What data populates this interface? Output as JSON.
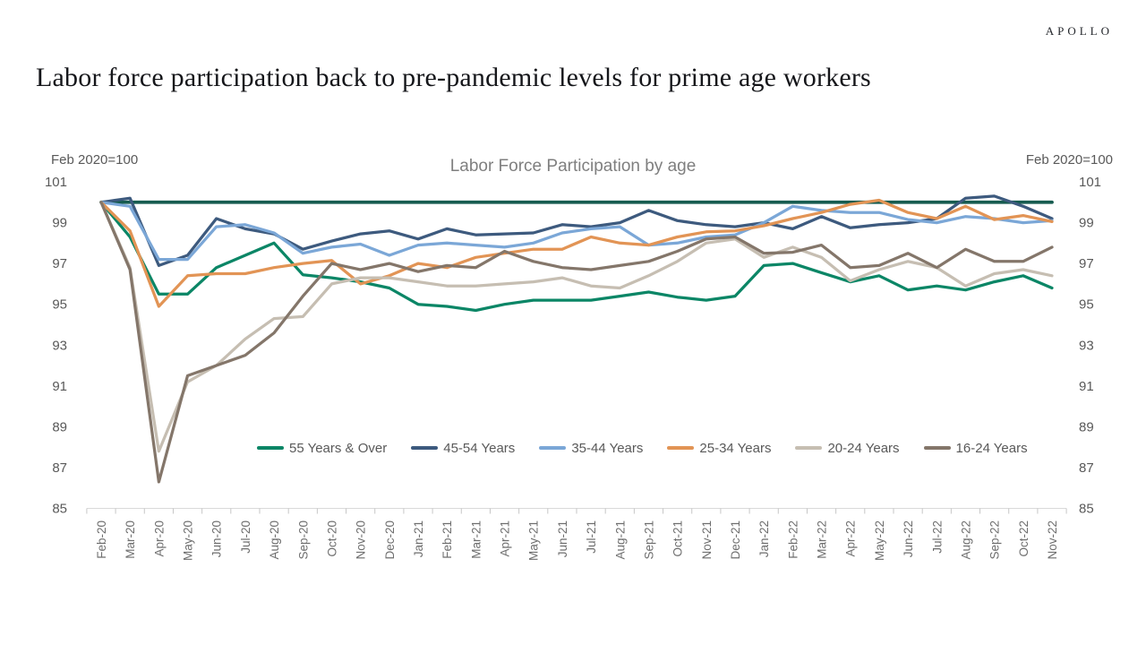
{
  "brand": {
    "logo_text": "APOLLO"
  },
  "header": {
    "title": "Labor force participation back to pre-pandemic levels for prime age workers"
  },
  "chart": {
    "title": "Labor Force Participation by age",
    "left_axis_note": "Feb 2020=100",
    "right_axis_note": "Feb 2020=100"
  },
  "chart_data": {
    "type": "line",
    "title": "Labor Force Participation by age",
    "xlabel": "",
    "ylabel": "Feb 2020=100",
    "ylim": [
      85,
      101
    ],
    "y_ticks": [
      101,
      99,
      97,
      95,
      93,
      91,
      89,
      87,
      85
    ],
    "grid": false,
    "legend_position": "bottom-center-inside",
    "categories": [
      "Feb-20",
      "Mar-20",
      "Apr-20",
      "May-20",
      "Jun-20",
      "Jul-20",
      "Aug-20",
      "Sep-20",
      "Oct-20",
      "Nov-20",
      "Dec-20",
      "Jan-21",
      "Feb-21",
      "Mar-21",
      "Apr-21",
      "May-21",
      "Jun-21",
      "Jul-21",
      "Aug-21",
      "Sep-21",
      "Oct-21",
      "Nov-21",
      "Dec-21",
      "Jan-22",
      "Feb-22",
      "Mar-22",
      "Apr-22",
      "May-22",
      "Jun-22",
      "Jul-22",
      "Aug-22",
      "Sep-22",
      "Oct-22",
      "Nov-22"
    ],
    "reference_line": {
      "name": "Feb 2020 = 100 baseline",
      "value": 100,
      "color": "#175C50"
    },
    "series": [
      {
        "name": "55 Years & Over",
        "color": "#0B8666",
        "values": [
          100,
          98.3,
          95.5,
          95.5,
          96.8,
          97.4,
          98.0,
          96.45,
          96.3,
          96.1,
          95.8,
          95.0,
          94.9,
          94.7,
          95.0,
          95.2,
          95.2,
          95.2,
          95.4,
          95.6,
          95.35,
          95.2,
          95.4,
          96.9,
          97.0,
          96.55,
          96.1,
          96.4,
          95.7,
          95.9,
          95.7,
          96.1,
          96.4,
          95.8
        ]
      },
      {
        "name": "45-54 Years",
        "color": "#3D5A7E",
        "values": [
          100,
          100.2,
          96.9,
          97.4,
          99.2,
          98.7,
          98.45,
          97.7,
          98.1,
          98.45,
          98.6,
          98.2,
          98.7,
          98.4,
          98.45,
          98.5,
          98.9,
          98.8,
          99.0,
          99.6,
          99.1,
          98.9,
          98.8,
          99.0,
          98.7,
          99.3,
          98.75,
          98.9,
          99.0,
          99.2,
          100.2,
          100.3,
          99.8,
          99.2
        ]
      },
      {
        "name": "35-44 Years",
        "color": "#7BA7D7",
        "values": [
          100,
          99.8,
          97.2,
          97.2,
          98.8,
          98.9,
          98.5,
          97.5,
          97.8,
          97.95,
          97.4,
          97.9,
          98.0,
          97.9,
          97.8,
          98.0,
          98.5,
          98.7,
          98.8,
          97.9,
          98.0,
          98.3,
          98.4,
          99.0,
          99.8,
          99.6,
          99.5,
          99.5,
          99.15,
          99.0,
          99.3,
          99.2,
          99.0,
          99.1
        ]
      },
      {
        "name": "25-34 Years",
        "color": "#E29455",
        "values": [
          100,
          98.6,
          94.9,
          96.4,
          96.5,
          96.5,
          96.8,
          97.0,
          97.15,
          96.0,
          96.4,
          97.0,
          96.8,
          97.3,
          97.5,
          97.7,
          97.7,
          98.3,
          98.0,
          97.9,
          98.3,
          98.55,
          98.6,
          98.85,
          99.2,
          99.5,
          99.9,
          100.1,
          99.5,
          99.2,
          99.8,
          99.15,
          99.35,
          99.05
        ]
      },
      {
        "name": "20-24 Years",
        "color": "#C6BEB2",
        "values": [
          100,
          96.8,
          87.8,
          91.2,
          92.0,
          93.3,
          94.3,
          94.4,
          96.0,
          96.3,
          96.3,
          96.1,
          95.9,
          95.9,
          96.0,
          96.1,
          96.3,
          95.9,
          95.8,
          96.4,
          97.1,
          98.0,
          98.2,
          97.3,
          97.8,
          97.3,
          96.15,
          96.7,
          97.1,
          96.8,
          95.9,
          96.5,
          96.7,
          96.4
        ]
      },
      {
        "name": "16-24 Years",
        "color": "#84766A",
        "values": [
          100,
          96.7,
          86.3,
          91.5,
          92.0,
          92.5,
          93.6,
          95.4,
          97.0,
          96.7,
          97.0,
          96.6,
          96.9,
          96.8,
          97.6,
          97.1,
          96.8,
          96.7,
          96.9,
          97.1,
          97.6,
          98.2,
          98.3,
          97.5,
          97.55,
          97.9,
          96.8,
          96.9,
          97.5,
          96.8,
          97.7,
          97.1,
          97.1,
          97.8
        ]
      }
    ]
  }
}
